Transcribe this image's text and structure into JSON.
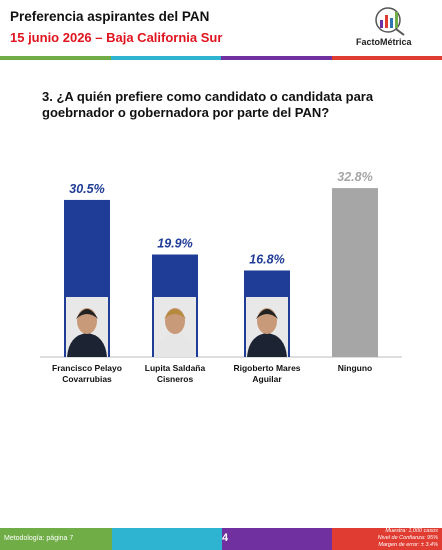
{
  "header": {
    "title": "Preferencia aspirantes del PAN",
    "subtitle": "15 junio 2026 – Baja California Sur",
    "logo": "FactoMétrica"
  },
  "question": "3. ¿A quién prefiere como candidato o candidata para goebrnador o gobernadora por parte del PAN?",
  "chart_data": {
    "type": "bar",
    "categories": [
      "Francisco Pelayo Covarrubias",
      "Lupita Saldaña Cisneros",
      "Rigoberto Mares Aguilar",
      "Ninguno"
    ],
    "values": [
      30.5,
      19.9,
      16.8,
      32.8
    ],
    "value_labels": [
      "30.5%",
      "19.9%",
      "16.8%",
      "32.8%"
    ],
    "colors": [
      "#1f3c96",
      "#1f3c96",
      "#1f3c96",
      "#a6a6a6"
    ]
  },
  "footer": {
    "methodology": "Metodología: página 7",
    "page": "4",
    "notes": [
      "Muestra: 1,000 casos",
      "Nivel de Confianza: 95%",
      "Margen de error: ± 3.4%"
    ]
  }
}
